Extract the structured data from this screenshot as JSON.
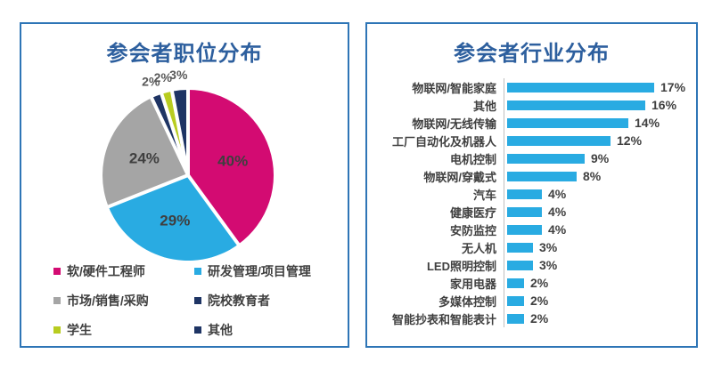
{
  "chart_data": [
    {
      "type": "pie",
      "title": "参会者职位分布",
      "labels": [
        "软/硬件工程师",
        "研发管理/项目管理",
        "市场/销售/采购",
        "院校教育者",
        "学生",
        "其他"
      ],
      "values": [
        40,
        29,
        24,
        2,
        2,
        3
      ],
      "unit": "%",
      "colors": [
        "#D30B72",
        "#29ABE2",
        "#A5A5A5",
        "#1E3464",
        "#B8CC20",
        "#1E3464"
      ],
      "start_angle_deg": 0,
      "slice_gap_color": "#ffffff",
      "legend_position": "bottom",
      "legend_columns": 2,
      "title_color": "#2D5F9E"
    },
    {
      "type": "bar",
      "orientation": "horizontal",
      "title": "参会者行业分布",
      "categories": [
        "物联网/智能家庭",
        "其他",
        "物联网/无线传输",
        "工厂自动化及机器人",
        "电机控制",
        "物联网/穿戴式",
        "汽车",
        "健康医疗",
        "安防监控",
        "无人机",
        "LED照明控制",
        "家用电器",
        "多媒体控制",
        "智能抄表和智能表计"
      ],
      "values": [
        17,
        16,
        14,
        12,
        9,
        8,
        4,
        4,
        4,
        3,
        3,
        2,
        2,
        2
      ],
      "unit": "%",
      "bar_color": "#29ABE2",
      "axis_line_color": "#BFBFBF",
      "xlim": [
        0,
        18
      ],
      "value_labels": "outside-end",
      "grid": "off",
      "title_color": "#2D5F9E"
    }
  ],
  "frame": {
    "border_color": "#2E75B6",
    "background": "#ffffff"
  }
}
